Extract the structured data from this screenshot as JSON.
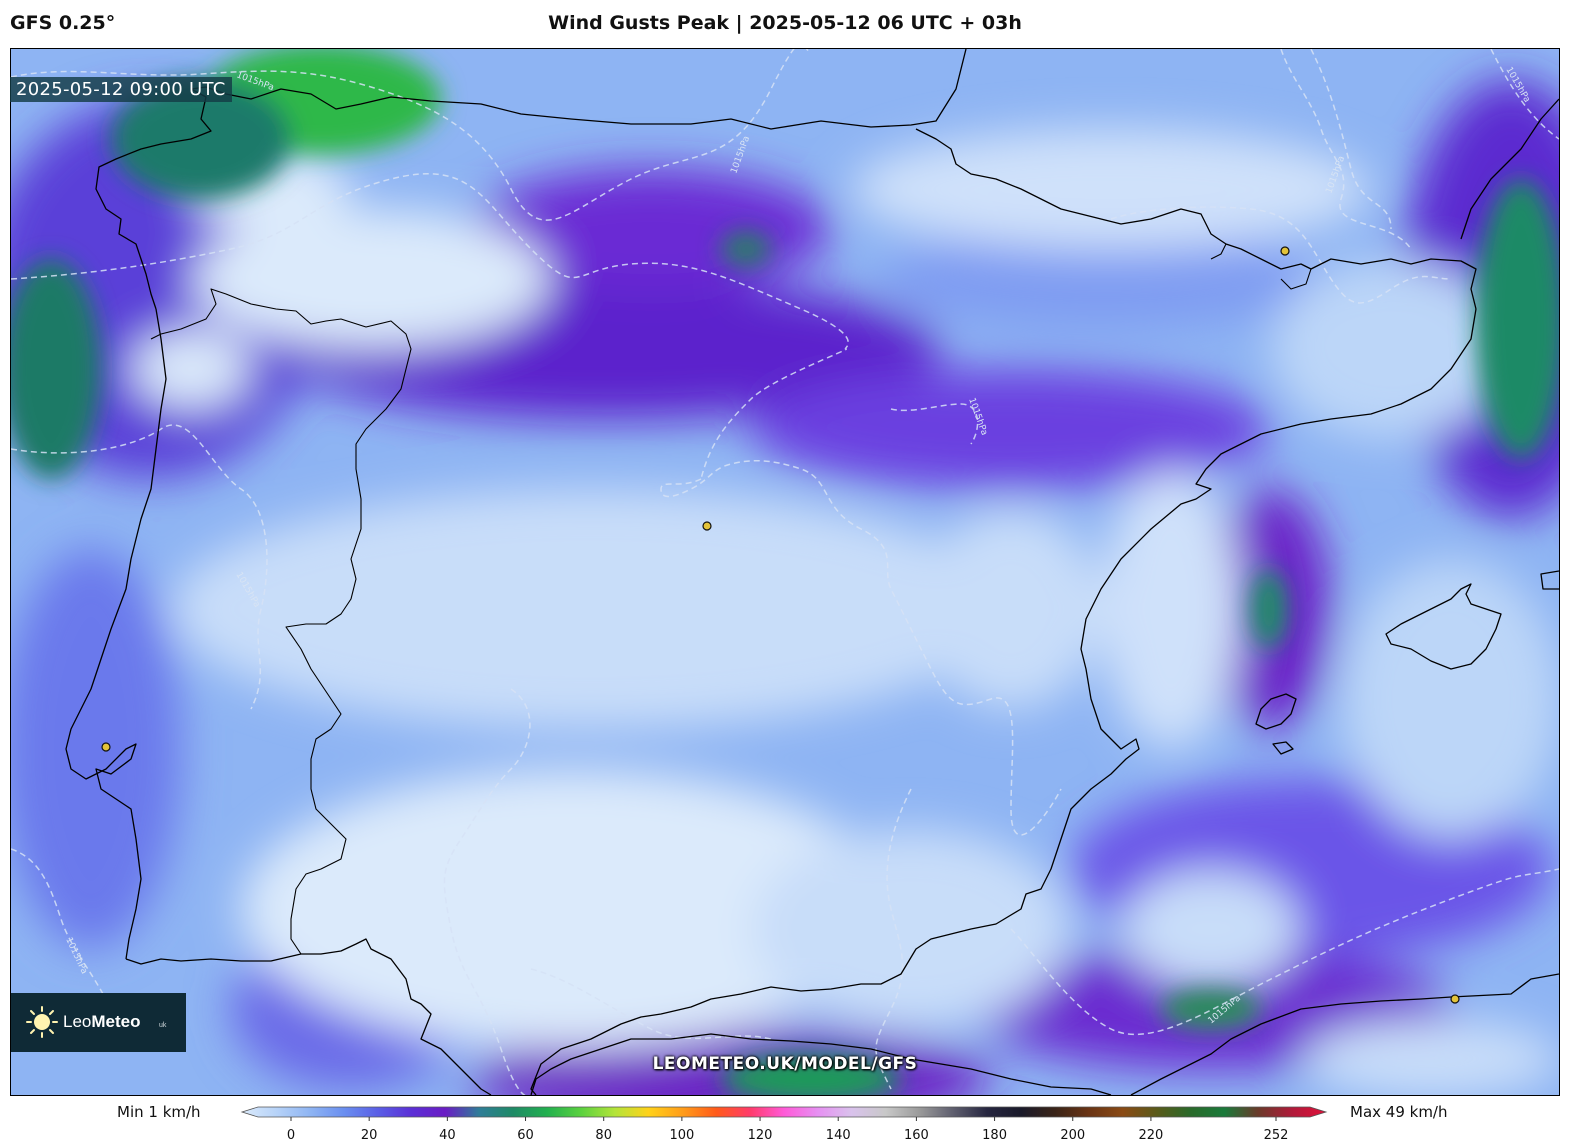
{
  "header": {
    "model": "GFS 0.25°",
    "title": "Wind Gusts Peak | 2025-05-12 06 UTC + 03h"
  },
  "map": {
    "valid_time": "2025-05-12 09:00 UTC",
    "url": "LEOMETEO.UK/MODEL/GFS",
    "isobar_labels": [
      "1015hPa",
      "1015hPa",
      "1015hPa",
      "1015hPa",
      "1015hPa",
      "1015hPa",
      "1015hPa",
      "1015hPa"
    ],
    "logo": {
      "main_a": "Leo",
      "main_b": "Meteo",
      "suffix": "uk"
    }
  },
  "colorbar": {
    "min_label": "Min 1 km/h",
    "max_label": "Max 49 km/h",
    "ticks": [
      "0",
      "20",
      "40",
      "60",
      "80",
      "100",
      "120",
      "140",
      "160",
      "180",
      "200",
      "220",
      "252"
    ],
    "colors": [
      "#dbeafb",
      "#b7d3f8",
      "#8fb5f3",
      "#6a8ff0",
      "#5a5fe6",
      "#5b2fd6",
      "#6a1cc4",
      "#2f7d98",
      "#1f8a66",
      "#22b04f",
      "#5ad13f",
      "#b3e43a",
      "#ffd21a",
      "#ff9d1a",
      "#ff5a1a",
      "#ff3b6b",
      "#ff5ad8",
      "#e690f2",
      "#d9c2ec",
      "#c8c8c8",
      "#9a9a9a",
      "#5e5e6e",
      "#262640",
      "#1a1a2a",
      "#3a2418",
      "#6a3414",
      "#8a4a14",
      "#5a5a1a",
      "#2a6a2a",
      "#1a7a3a",
      "#6a3a2a",
      "#b01a3a",
      "#e0103a"
    ]
  }
}
